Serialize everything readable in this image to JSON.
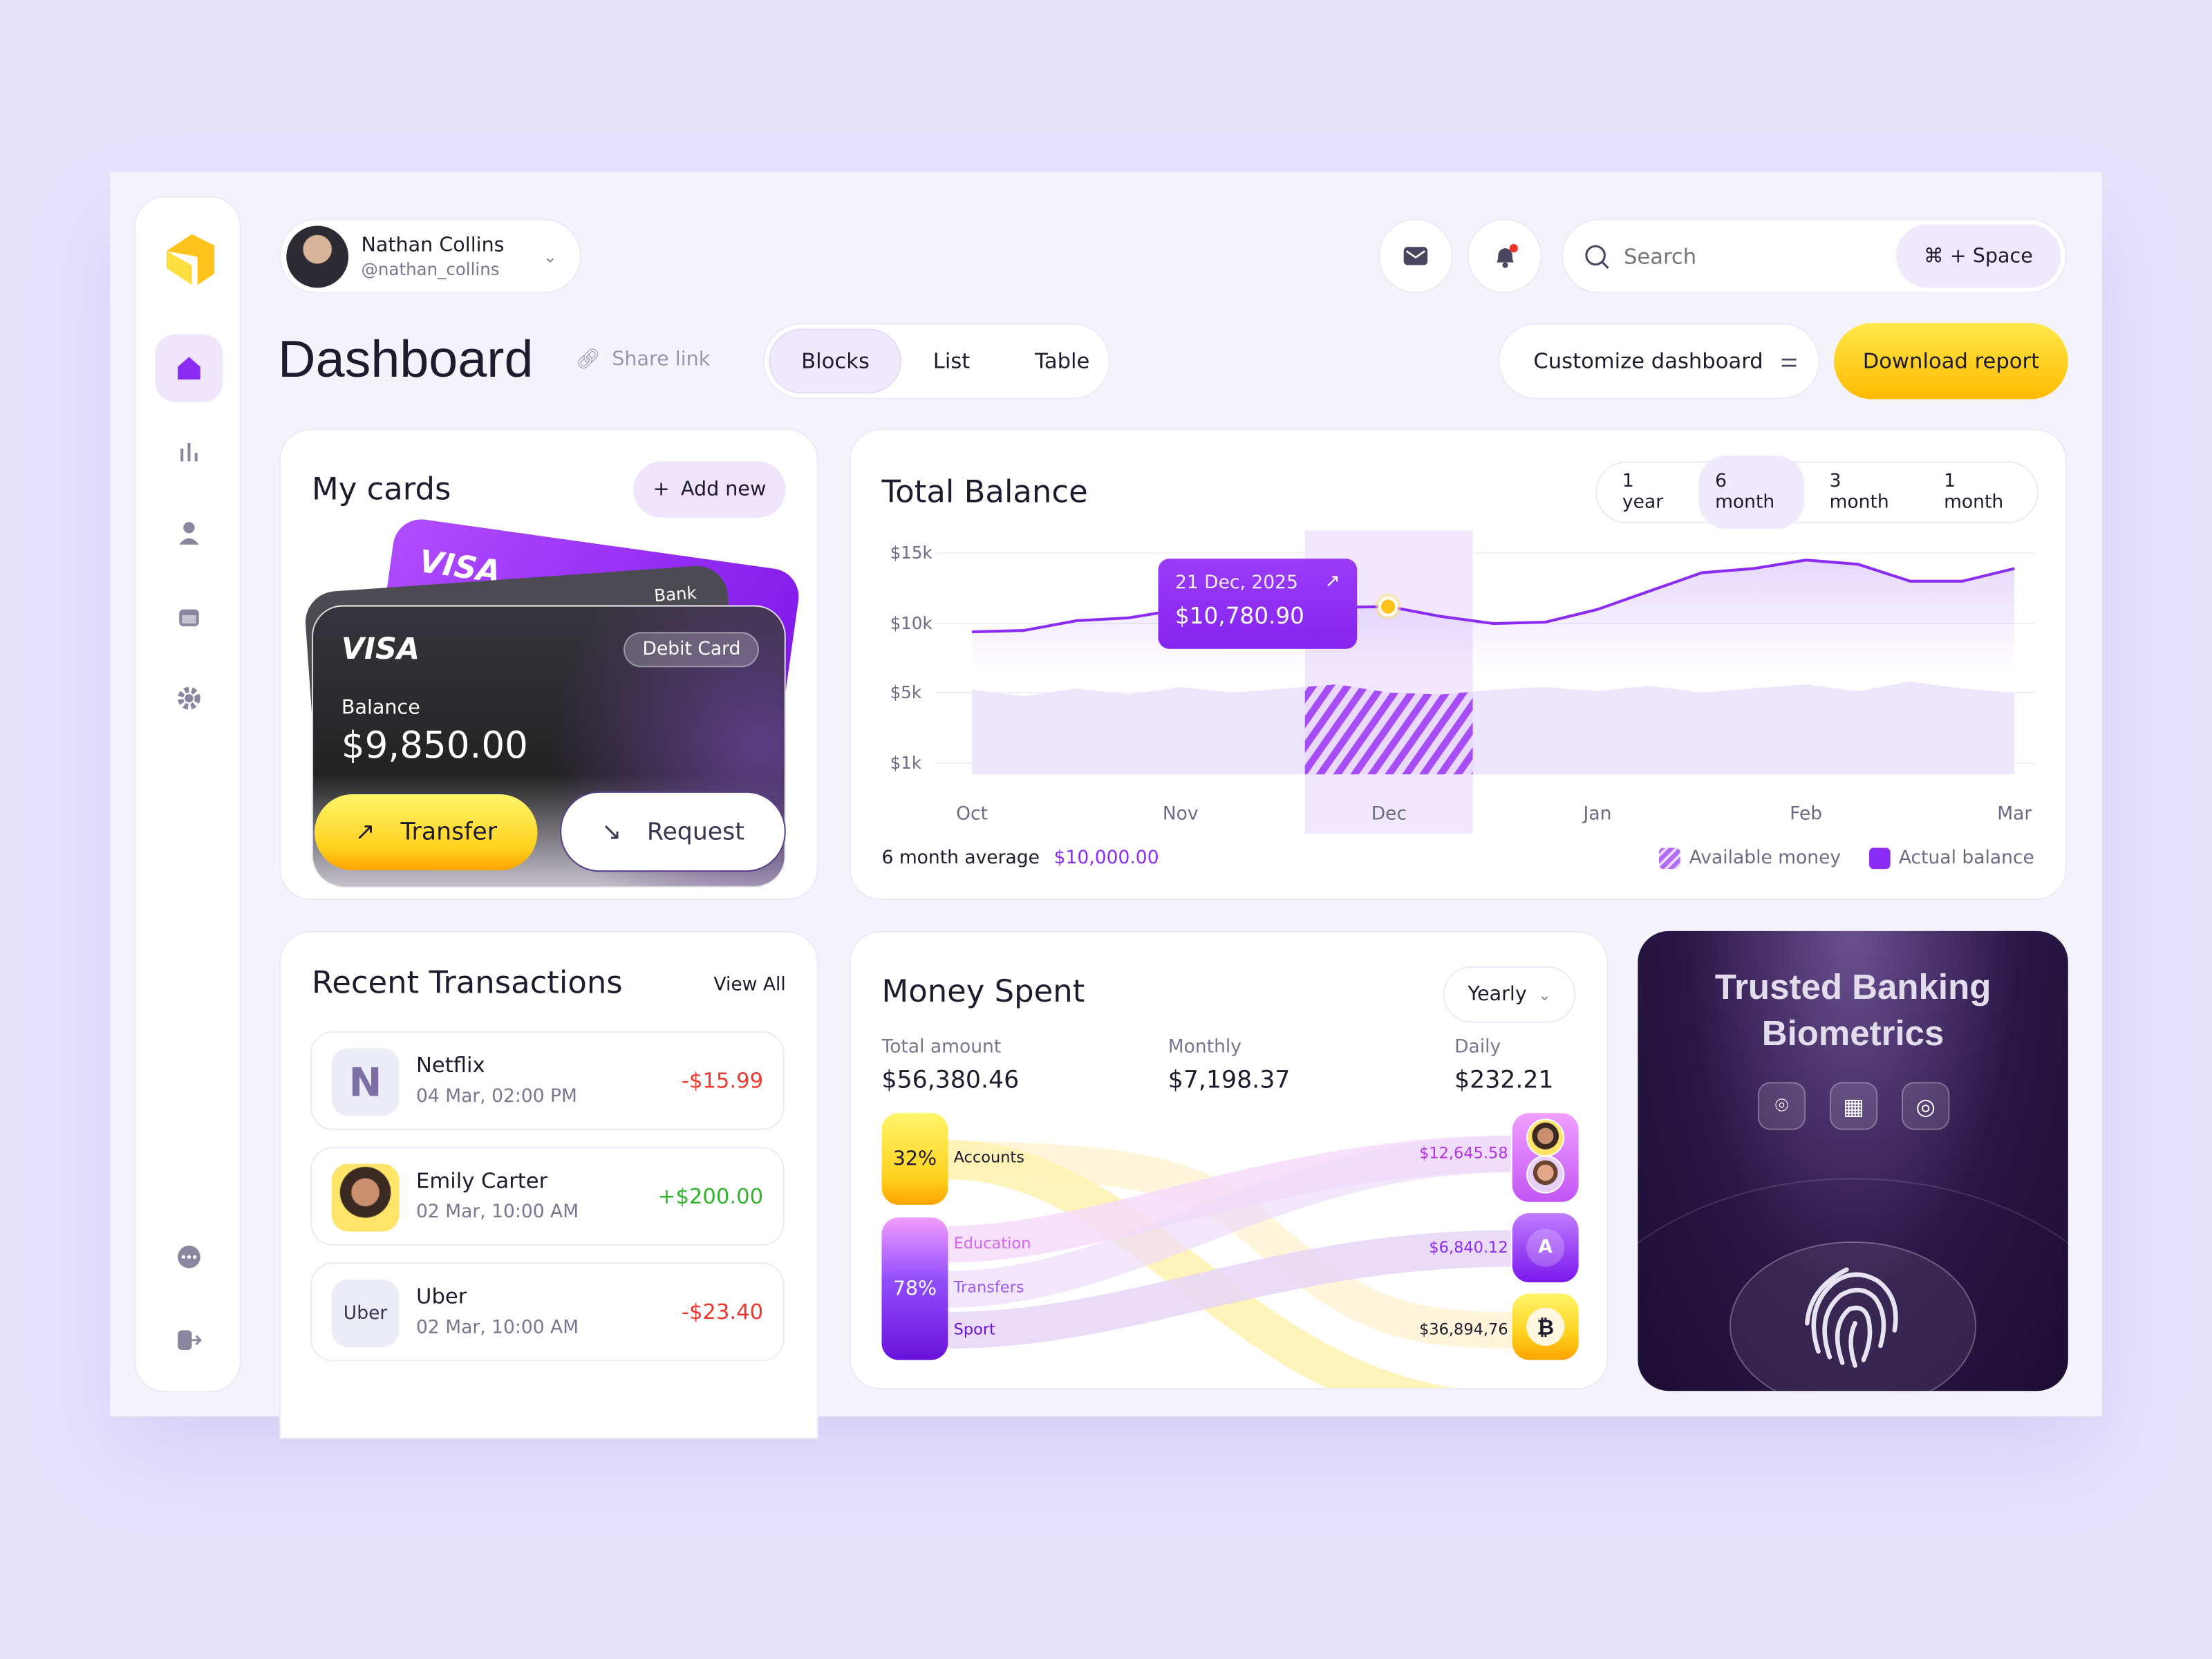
{
  "user": {
    "name": "Nathan Collins",
    "handle": "@nathan_collins"
  },
  "search": {
    "placeholder": "Search",
    "shortcut": "⌘ + Space"
  },
  "header": {
    "title": "Dashboard",
    "share": "Share link",
    "views": [
      "Blocks",
      "List",
      "Table"
    ],
    "active_view": "Blocks",
    "customize": "Customize dashboard",
    "download": "Download report"
  },
  "sidebar": {
    "items": [
      "home-icon",
      "chart-icon",
      "user-icon",
      "calendar-icon",
      "gear-icon",
      "chat-icon",
      "logout-icon"
    ],
    "active": "home-icon"
  },
  "colors": {
    "accent": "#8b2cf5",
    "yellow": "#ffd21f",
    "bg": "#e7e3fd",
    "positive": "#2fb52a",
    "negative": "#f0352b"
  },
  "cards": {
    "title": "My cards",
    "add": "Add new",
    "brand": "VISA",
    "back_label": "Bank",
    "type": "Debit Card",
    "balance_label": "Balance",
    "balance": "$9,850.00",
    "transfer": "Transfer",
    "request": "Request"
  },
  "balance": {
    "title": "Total Balance",
    "ranges": [
      "1 year",
      "6 month",
      "3 month",
      "1 month"
    ],
    "active_range": "6 month",
    "tooltip_date": "21 Dec, 2025",
    "tooltip_value": "$10,780.90",
    "avg_label": "6 month average",
    "avg_value": "$10,000.00"
  },
  "chart_data": {
    "type": "line",
    "x_ticks": [
      "Oct",
      "Nov",
      "Dec",
      "Jan",
      "Feb",
      "Mar"
    ],
    "y_ticks": [
      "$15k",
      "$10k",
      "$5k",
      "$1k"
    ],
    "y_tick_values": [
      15000,
      10000,
      5000,
      1000
    ],
    "highlight": "Dec",
    "series": [
      {
        "name": "Actual balance",
        "color": "#8b2cf5",
        "values": [
          9400,
          9500,
          10200,
          10400,
          11000,
          11100,
          11200,
          11150,
          11200,
          10500,
          10000,
          10100,
          11000,
          12300,
          13600,
          13900,
          14500,
          14200,
          13000,
          13000,
          13900
        ]
      },
      {
        "name": "Available money",
        "color": "#c9b8f2",
        "values": [
          5200,
          4800,
          5300,
          4900,
          5400,
          5000,
          5300,
          5600,
          5000,
          4900,
          5200,
          5400,
          5100,
          5500,
          5000,
          5300,
          5600,
          5100,
          5800,
          5300,
          5000
        ]
      }
    ]
  },
  "transactions": {
    "title": "Recent Transactions",
    "view_all": "View All",
    "items": [
      {
        "name": "Netflix",
        "date": "04 Mar, 02:00 PM",
        "amount": "-$15.99",
        "icon": "N"
      },
      {
        "name": "Emily Carter",
        "date": "02 Mar, 10:00 AM",
        "amount": "+$200.00",
        "icon": "avatar"
      },
      {
        "name": "Uber",
        "date": "02 Mar, 10:00 AM",
        "amount": "-$23.40",
        "icon": "Uber"
      }
    ]
  },
  "spent": {
    "title": "Money Spent",
    "period": "Yearly",
    "stats": [
      {
        "label": "Total amount",
        "value": "$56,380.46"
      },
      {
        "label": "Monthly",
        "value": "$7,198.37"
      },
      {
        "label": "Daily",
        "value": "$232.21"
      }
    ],
    "sources": [
      {
        "pct": "32%",
        "labels": [
          "Accounts"
        ]
      },
      {
        "pct": "78%",
        "labels": [
          "Education",
          "Transfers",
          "Sport"
        ]
      }
    ],
    "targets": [
      {
        "amount": "$12,645.58",
        "icon": "people-icon"
      },
      {
        "amount": "$6,840.12",
        "icon": "adobe-icon"
      },
      {
        "amount": "$36,894,76",
        "icon": "bitcoin-icon"
      }
    ]
  },
  "bio": {
    "title": "Trusted Banking Biometrics",
    "icons": [
      "face-id-icon",
      "qr-code-icon",
      "fingerprint-icon"
    ]
  }
}
